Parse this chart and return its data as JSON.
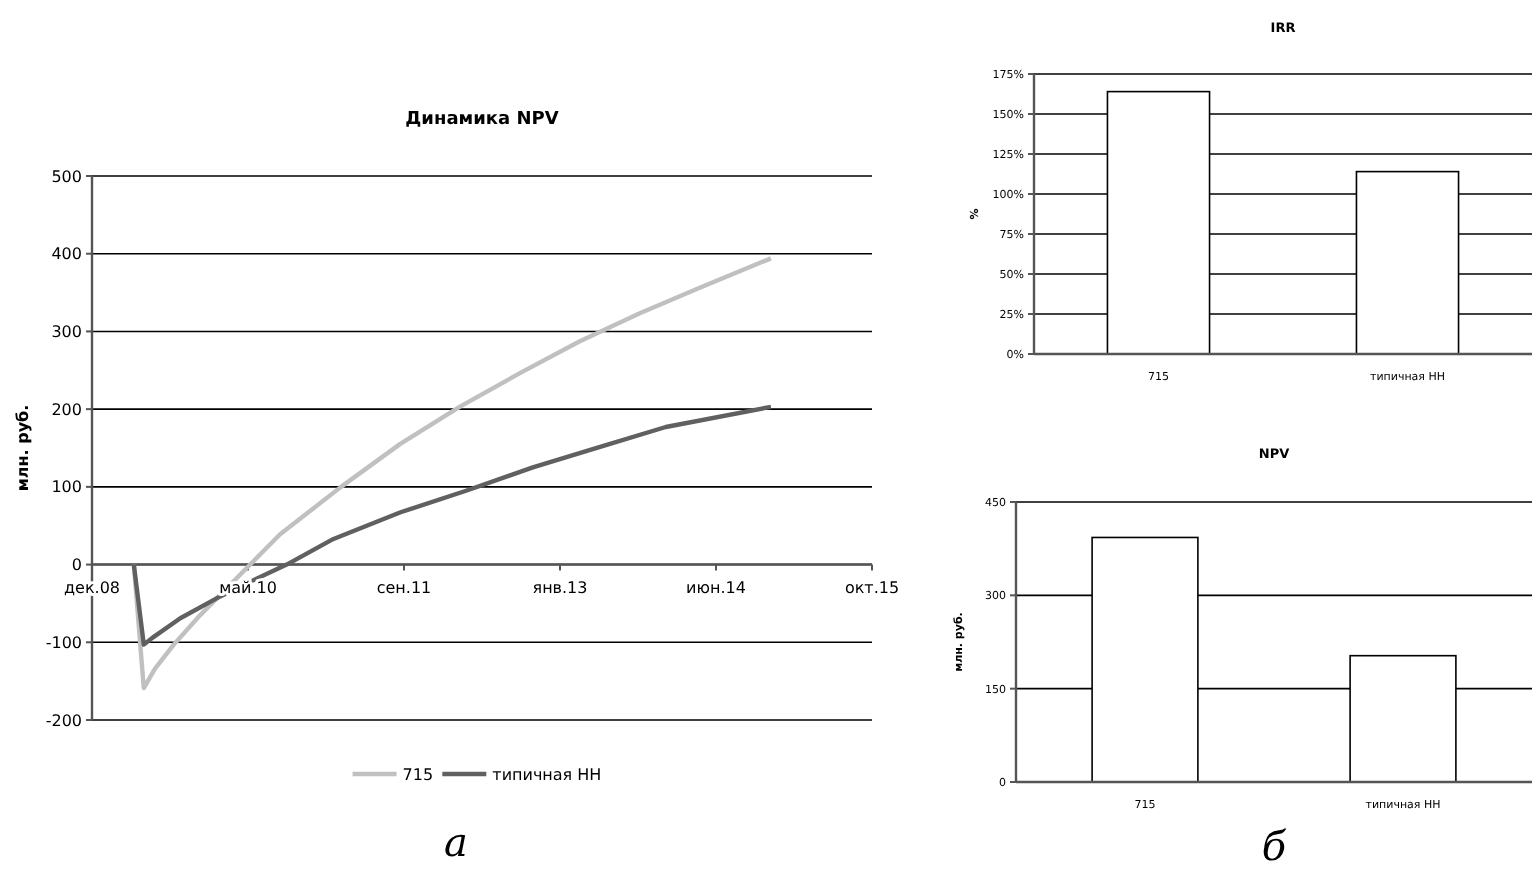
{
  "chart_data": [
    {
      "type": "line",
      "title": "Динамика NPV",
      "ylabel": "млн. руб.",
      "xlim": [
        "2008-12-20",
        "2015-10-25"
      ],
      "xticks": [
        {
          "value": "2008-12-20",
          "label": "дек.08"
        },
        {
          "value": "2010-05-04",
          "label": "май.10"
        },
        {
          "value": "2011-09-16",
          "label": "сен.11"
        },
        {
          "value": "2013-01-28",
          "label": "янв.13"
        },
        {
          "value": "2014-06-12",
          "label": "июн.14"
        },
        {
          "value": "2015-10-25",
          "label": "окт.15"
        }
      ],
      "ylim": [
        -200,
        500
      ],
      "yticks": [
        -200,
        -100,
        0,
        100,
        200,
        300,
        400,
        500
      ],
      "grid": "y",
      "legend": "bottom",
      "annotations": [
        "а"
      ],
      "series": [
        {
          "name": "715",
          "color": "#c0c0c0",
          "x": [
            "2009-05-03",
            "2009-06-04",
            "2009-07-10",
            "2009-09-08",
            "2009-12-02",
            "2010-02-26",
            "2010-05-11",
            "2010-08-15",
            "2011-02-23",
            "2011-09-03",
            "2012-03-12",
            "2012-09-20",
            "2013-03-31",
            "2013-10-09",
            "2014-04-19",
            "2014-12-05"
          ],
          "values": [
            0,
            -159,
            -134,
            -103,
            -65,
            -30,
            0,
            39,
            99,
            155,
            203,
            246,
            287,
            323,
            356,
            394
          ]
        },
        {
          "name": "типичная НН",
          "color": "#606060",
          "x": [
            "2009-05-03",
            "2009-06-04",
            "2009-07-06",
            "2009-09-29",
            "2010-02-04",
            "2010-05-22",
            "2010-09-05",
            "2011-02-02",
            "2011-09-03",
            "2012-04-02",
            "2012-11-02",
            "2013-06-03",
            "2014-01-02",
            "2014-12-05"
          ],
          "values": [
            0,
            -103,
            -93,
            -69,
            -41,
            -20,
            0,
            33,
            67,
            95,
            125,
            151,
            177,
            203
          ]
        }
      ]
    },
    {
      "type": "bar",
      "title": "IRR",
      "ylabel": "%",
      "categories": [
        "715",
        "типичная НН"
      ],
      "values": [
        164,
        114
      ],
      "color": "#ffffff",
      "ylim": [
        0,
        175
      ],
      "yticks": [
        {
          "value": 0,
          "label": "0%"
        },
        {
          "value": 25,
          "label": "25%"
        },
        {
          "value": 50,
          "label": "50%"
        },
        {
          "value": 75,
          "label": "75%"
        },
        {
          "value": 100,
          "label": "100%"
        },
        {
          "value": 125,
          "label": "125%"
        },
        {
          "value": 150,
          "label": "150%"
        },
        {
          "value": 175,
          "label": "175%"
        }
      ],
      "grid": "y"
    },
    {
      "type": "bar",
      "title": "NPV",
      "ylabel": "млн. руб.",
      "categories": [
        "715",
        "типичная НН"
      ],
      "values": [
        393,
        203
      ],
      "color": "#ffffff",
      "ylim": [
        0,
        450
      ],
      "yticks": [
        0,
        150,
        300,
        450
      ],
      "grid": "y",
      "annotations": [
        "б"
      ]
    }
  ]
}
